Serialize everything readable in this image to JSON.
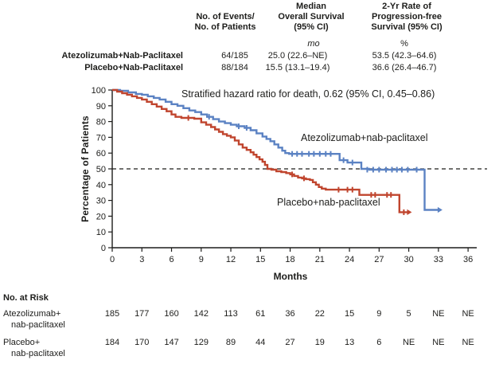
{
  "header_table": {
    "columns": [
      {
        "lines": [
          "No. of Events/",
          "No. of Patients"
        ],
        "unit": ""
      },
      {
        "lines": [
          "Median",
          "Overall Survival",
          "(95% CI)"
        ],
        "unit": "mo"
      },
      {
        "lines": [
          "2-Yr Rate of",
          "Progression-free",
          "Survival (95% CI)"
        ],
        "unit": "%"
      }
    ],
    "rows": [
      {
        "label": "Atezolizumab+Nab-Paclitaxel",
        "events": "64/185",
        "median_os": "25.0 (22.6–NE)",
        "pfs_2yr": "53.5 (42.3–64.6)"
      },
      {
        "label": "Placebo+Nab-Paclitaxel",
        "events": "88/184",
        "median_os": "15.5 (13.1–19.4)",
        "pfs_2yr": "36.6 (26.4–46.7)"
      }
    ]
  },
  "chart_data": {
    "type": "line",
    "subtype": "kaplan-meier-step",
    "title": "",
    "xlabel": "Months",
    "ylabel": "Percentage of Patients",
    "xlim": [
      0,
      36
    ],
    "ylim": [
      0,
      100
    ],
    "x_ticks": [
      0,
      3,
      6,
      9,
      12,
      15,
      18,
      21,
      24,
      27,
      30,
      33,
      36
    ],
    "y_ticks": [
      0,
      10,
      20,
      30,
      40,
      50,
      60,
      70,
      80,
      90,
      100
    ],
    "grid": false,
    "annotation": "Stratified hazard ratio for death, 0.62 (95% CI, 0.45–0.86)",
    "reference_line_y": 50,
    "series": [
      {
        "name": "Atezolizumab+nab-paclitaxel",
        "color": "#5b82c3",
        "points": [
          [
            0,
            100
          ],
          [
            0.8,
            99.5
          ],
          [
            1.6,
            98.5
          ],
          [
            2.4,
            97.5
          ],
          [
            3,
            97
          ],
          [
            3.6,
            96
          ],
          [
            4.2,
            95
          ],
          [
            4.8,
            94
          ],
          [
            5.4,
            92.5
          ],
          [
            6,
            91
          ],
          [
            6.6,
            90
          ],
          [
            7.2,
            88.5
          ],
          [
            7.8,
            87
          ],
          [
            8.4,
            86
          ],
          [
            9,
            84.5
          ],
          [
            9.6,
            83
          ],
          [
            10.2,
            81.5
          ],
          [
            10.8,
            80
          ],
          [
            11.4,
            79
          ],
          [
            12,
            78
          ],
          [
            12.6,
            77
          ],
          [
            13.4,
            76
          ],
          [
            14,
            74.5
          ],
          [
            14.6,
            72.5
          ],
          [
            15.2,
            70.5
          ],
          [
            15.6,
            69
          ],
          [
            16,
            67.5
          ],
          [
            16.4,
            65.5
          ],
          [
            16.8,
            63.5
          ],
          [
            17.2,
            61.5
          ],
          [
            17.5,
            60
          ],
          [
            17.9,
            59.5
          ],
          [
            23,
            55.5
          ],
          [
            23.8,
            54
          ],
          [
            25.2,
            50
          ],
          [
            26,
            49.5
          ],
          [
            31.6,
            24
          ],
          [
            33,
            24
          ]
        ],
        "censors": [
          [
            9.8,
            83
          ],
          [
            12.8,
            77
          ],
          [
            13.6,
            76
          ],
          [
            18.2,
            59.5
          ],
          [
            18.7,
            59.5
          ],
          [
            19.2,
            59.5
          ],
          [
            19.9,
            59.5
          ],
          [
            20.4,
            59.5
          ],
          [
            21,
            59.5
          ],
          [
            21.6,
            59.5
          ],
          [
            22.1,
            59.5
          ],
          [
            23.4,
            55.5
          ],
          [
            24.3,
            54
          ],
          [
            25.8,
            49.5
          ],
          [
            26.4,
            49.5
          ],
          [
            27,
            49.5
          ],
          [
            27.7,
            49.5
          ],
          [
            28.3,
            49.5
          ],
          [
            28.8,
            49.5
          ],
          [
            29.3,
            49.5
          ],
          [
            29.9,
            49.5
          ],
          [
            30.8,
            49.5
          ]
        ]
      },
      {
        "name": "Placebo+nab-paclitaxel",
        "color": "#c0452e",
        "points": [
          [
            0,
            100
          ],
          [
            0.5,
            99
          ],
          [
            1,
            98
          ],
          [
            1.5,
            97
          ],
          [
            2,
            96
          ],
          [
            2.5,
            95
          ],
          [
            3,
            94
          ],
          [
            3.5,
            92.5
          ],
          [
            4,
            91
          ],
          [
            4.5,
            89.5
          ],
          [
            5,
            88
          ],
          [
            5.5,
            86.5
          ],
          [
            6,
            84.5
          ],
          [
            6.4,
            83
          ],
          [
            7,
            82.3
          ],
          [
            8.3,
            81.8
          ],
          [
            9,
            79.5
          ],
          [
            9.5,
            78
          ],
          [
            10,
            76.5
          ],
          [
            10.4,
            75
          ],
          [
            10.8,
            73.5
          ],
          [
            11.2,
            72
          ],
          [
            11.6,
            71
          ],
          [
            12,
            70
          ],
          [
            12.4,
            68
          ],
          [
            12.8,
            65.5
          ],
          [
            13.2,
            63.5
          ],
          [
            13.6,
            62
          ],
          [
            14,
            60.5
          ],
          [
            14.3,
            59
          ],
          [
            14.6,
            57.5
          ],
          [
            14.9,
            56
          ],
          [
            15.2,
            54.5
          ],
          [
            15.45,
            52.5
          ],
          [
            15.7,
            50
          ],
          [
            16.1,
            49.5
          ],
          [
            16.6,
            48.5
          ],
          [
            17.1,
            48
          ],
          [
            17.6,
            47.3
          ],
          [
            18,
            46.5
          ],
          [
            18.4,
            45.5
          ],
          [
            18.8,
            44.5
          ],
          [
            19.2,
            44
          ],
          [
            19.6,
            43.5
          ],
          [
            20,
            43
          ],
          [
            20.3,
            41.5
          ],
          [
            20.6,
            40
          ],
          [
            20.9,
            38.5
          ],
          [
            21.2,
            37.5
          ],
          [
            21.6,
            36.8
          ],
          [
            25,
            33.5
          ],
          [
            29.05,
            22.5
          ],
          [
            29.9,
            22.5
          ]
        ],
        "censors": [
          [
            7.7,
            82.3
          ],
          [
            18.2,
            46.5
          ],
          [
            19.4,
            44
          ],
          [
            22.9,
            36.8
          ],
          [
            23.8,
            36.8
          ],
          [
            24.3,
            36.8
          ],
          [
            26.2,
            33.5
          ],
          [
            26.6,
            33.5
          ],
          [
            27.8,
            33.5
          ],
          [
            28.2,
            33.5
          ],
          [
            29.5,
            22.5
          ]
        ]
      }
    ]
  },
  "risk_table": {
    "title": "No. at Risk",
    "rows": [
      {
        "label_lines": [
          "Atezolizumab+",
          "nab-paclitaxel"
        ],
        "values": [
          "185",
          "177",
          "160",
          "142",
          "113",
          "61",
          "36",
          "22",
          "15",
          "9",
          "5",
          "NE",
          "NE"
        ]
      },
      {
        "label_lines": [
          "Placebo+",
          "nab-paclitaxel"
        ],
        "values": [
          "184",
          "170",
          "147",
          "129",
          "89",
          "44",
          "27",
          "19",
          "13",
          "6",
          "NE",
          "NE",
          "NE"
        ]
      }
    ]
  }
}
